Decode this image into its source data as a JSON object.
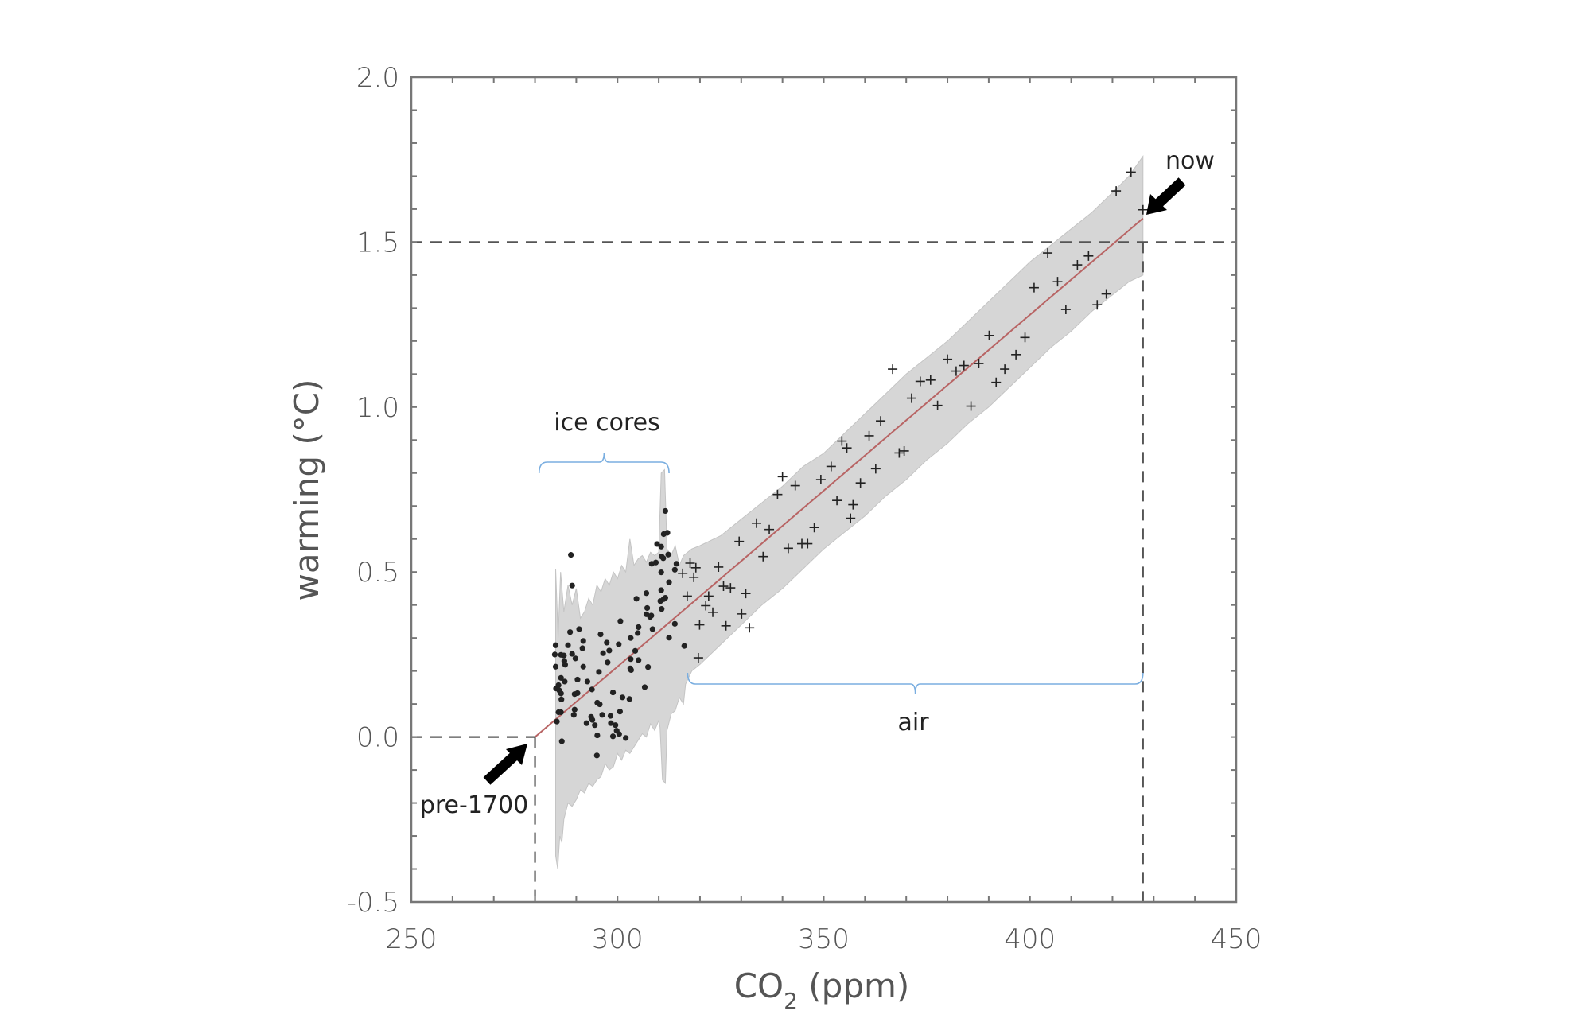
{
  "chart_data": {
    "type": "scatter",
    "title": "",
    "xlabel": {
      "main": "CO",
      "sub": "2",
      "rest": " (ppm)"
    },
    "ylabel": "warming (°C)",
    "xlim": [
      250,
      450
    ],
    "ylim": [
      -0.5,
      2.0
    ],
    "xticks": [
      250,
      300,
      350,
      400,
      450
    ],
    "xtick_labels": [
      "250",
      "300",
      "350",
      "400",
      "450"
    ],
    "yticks": [
      -0.5,
      0.0,
      0.5,
      1.0,
      1.5,
      2.0
    ],
    "ytick_labels": [
      "-0.5",
      "0.0",
      "0.5",
      "1.0",
      "1.5",
      "2.0"
    ],
    "grid": false,
    "colors": {
      "band": "#d6d6d6",
      "fit": "#b86464",
      "points": "#222222",
      "brace": "#7aaee0",
      "frame": "#777777",
      "guide": "#555555"
    },
    "fit_line": {
      "x": [
        280,
        427.4
      ],
      "y": [
        0.0,
        1.572
      ]
    },
    "uncertainty_band": {
      "upper": [
        [
          285,
          0.51
        ],
        [
          285.6,
          0.3
        ],
        [
          286.2,
          0.5
        ],
        [
          287,
          0.38
        ],
        [
          288,
          0.46
        ],
        [
          289,
          0.4
        ],
        [
          290,
          0.45
        ],
        [
          291,
          0.36
        ],
        [
          292,
          0.38
        ],
        [
          293,
          0.42
        ],
        [
          294,
          0.4
        ],
        [
          295,
          0.46
        ],
        [
          296,
          0.44
        ],
        [
          297,
          0.48
        ],
        [
          298,
          0.46
        ],
        [
          299,
          0.5
        ],
        [
          300,
          0.48
        ],
        [
          301,
          0.52
        ],
        [
          302,
          0.5
        ],
        [
          303,
          0.6
        ],
        [
          304,
          0.52
        ],
        [
          305,
          0.54
        ],
        [
          306,
          0.55
        ],
        [
          307,
          0.53
        ],
        [
          308,
          0.56
        ],
        [
          309,
          0.55
        ],
        [
          310,
          0.56
        ],
        [
          310.6,
          0.8
        ],
        [
          311.4,
          0.81
        ],
        [
          312,
          0.57
        ],
        [
          313,
          0.55
        ],
        [
          314,
          0.58
        ],
        [
          315,
          0.52
        ],
        [
          316,
          0.55
        ],
        [
          318,
          0.57
        ],
        [
          320,
          0.58
        ],
        [
          325,
          0.61
        ],
        [
          330,
          0.66
        ],
        [
          335,
          0.71
        ],
        [
          340,
          0.76
        ],
        [
          345,
          0.82
        ],
        [
          350,
          0.86
        ],
        [
          355,
          0.92
        ],
        [
          360,
          0.98
        ],
        [
          365,
          1.04
        ],
        [
          370,
          1.1
        ],
        [
          375,
          1.15
        ],
        [
          380,
          1.2
        ],
        [
          385,
          1.26
        ],
        [
          390,
          1.32
        ],
        [
          395,
          1.38
        ],
        [
          400,
          1.44
        ],
        [
          405,
          1.49
        ],
        [
          410,
          1.54
        ],
        [
          415,
          1.59
        ],
        [
          420,
          1.65
        ],
        [
          424,
          1.7
        ],
        [
          427.4,
          1.76
        ]
      ],
      "lower": [
        [
          427.4,
          1.4
        ],
        [
          424,
          1.38
        ],
        [
          420,
          1.34
        ],
        [
          415,
          1.29
        ],
        [
          410,
          1.23
        ],
        [
          405,
          1.18
        ],
        [
          400,
          1.12
        ],
        [
          395,
          1.06
        ],
        [
          390,
          1.0
        ],
        [
          385,
          0.95
        ],
        [
          380,
          0.89
        ],
        [
          375,
          0.84
        ],
        [
          370,
          0.78
        ],
        [
          365,
          0.73
        ],
        [
          360,
          0.67
        ],
        [
          355,
          0.62
        ],
        [
          350,
          0.57
        ],
        [
          345,
          0.51
        ],
        [
          340,
          0.45
        ],
        [
          335,
          0.4
        ],
        [
          330,
          0.34
        ],
        [
          325,
          0.28
        ],
        [
          320,
          0.22
        ],
        [
          318,
          0.2
        ],
        [
          316.5,
          0.16
        ],
        [
          316,
          0.1
        ],
        [
          315,
          0.12
        ],
        [
          314,
          0.08
        ],
        [
          313,
          0.07
        ],
        [
          312,
          0.02
        ],
        [
          311.6,
          -0.14
        ],
        [
          310.9,
          -0.13
        ],
        [
          310.3,
          0.03
        ],
        [
          310,
          0.05
        ],
        [
          309,
          0.02
        ],
        [
          308,
          0.04
        ],
        [
          307,
          0.0
        ],
        [
          306,
          0.01
        ],
        [
          305,
          -0.01
        ],
        [
          304,
          -0.03
        ],
        [
          303,
          -0.05
        ],
        [
          302,
          -0.04
        ],
        [
          301,
          -0.07
        ],
        [
          300,
          -0.05
        ],
        [
          299,
          -0.09
        ],
        [
          298,
          -0.1
        ],
        [
          297,
          -0.08
        ],
        [
          296,
          -0.12
        ],
        [
          295,
          -0.13
        ],
        [
          294,
          -0.15
        ],
        [
          293,
          -0.14
        ],
        [
          292,
          -0.17
        ],
        [
          291,
          -0.16
        ],
        [
          290,
          -0.19
        ],
        [
          289,
          -0.21
        ],
        [
          288,
          -0.2
        ],
        [
          287,
          -0.25
        ],
        [
          286.5,
          -0.32
        ],
        [
          286,
          -0.3
        ],
        [
          285.5,
          -0.4
        ],
        [
          285,
          -0.36
        ]
      ]
    },
    "series": [
      {
        "name": "ice cores",
        "marker": "dot",
        "x": [
          311.6,
          312.1,
          311.2,
          309.6,
          310.6,
          310.7,
          311.1,
          312.3,
          309.3,
          308.3,
          314.3,
          313.9,
          310.6,
          312.5,
          288.7,
          289.0,
          310.6,
          307.0,
          304.6,
          311.6,
          311.2,
          310.4,
          310.7,
          307.2,
          307.0,
          308.2,
          307.9,
          300.7,
          313.9,
          308.5,
          305.1,
          290.7,
          288.5,
          304.9,
          312.5,
          295.9,
          303.2,
          291.7,
          297.4,
          285.0,
          288.0,
          300.3,
          291.5,
          316.2,
          298.0,
          296.5,
          289.0,
          284.8,
          286.3,
          287.0,
          289.8,
          304.3,
          303.2,
          305.1,
          287.1,
          287.3,
          285.0,
          291.7,
          297.6,
          307.4,
          303.1,
          303.3,
          295.5,
          286.3,
          290.3,
          287.2,
          292.7,
          285.7,
          285.1,
          285.9,
          286.3,
          306.6,
          293.8,
          298.9,
          290.3,
          289.6,
          286.4,
          301.2,
          302.9,
          295.1,
          295.7,
          285.7,
          286.3,
          289.6,
          300.6,
          289.4,
          296.3,
          298.3,
          293.6,
          285.3,
          293.9,
          292.5,
          294.5,
          298.4,
          299.5,
          299.8,
          300.4,
          295.1,
          298.9,
          302.0,
          286.5,
          295.0
        ],
        "y": [
          0.685,
          0.619,
          0.615,
          0.585,
          0.577,
          0.547,
          0.542,
          0.553,
          0.529,
          0.525,
          0.525,
          0.507,
          0.499,
          0.469,
          0.552,
          0.459,
          0.445,
          0.436,
          0.419,
          0.422,
          0.418,
          0.412,
          0.388,
          0.391,
          0.372,
          0.368,
          0.364,
          0.351,
          0.343,
          0.327,
          0.333,
          0.327,
          0.318,
          0.315,
          0.301,
          0.311,
          0.3,
          0.291,
          0.286,
          0.278,
          0.278,
          0.281,
          0.269,
          0.276,
          0.262,
          0.254,
          0.252,
          0.25,
          0.249,
          0.247,
          0.238,
          0.261,
          0.236,
          0.233,
          0.23,
          0.219,
          0.213,
          0.213,
          0.226,
          0.212,
          0.208,
          0.203,
          0.197,
          0.179,
          0.174,
          0.168,
          0.168,
          0.157,
          0.147,
          0.141,
          0.132,
          0.151,
          0.144,
          0.135,
          0.133,
          0.13,
          0.114,
          0.12,
          0.115,
          0.104,
          0.099,
          0.075,
          0.075,
          0.083,
          0.077,
          0.067,
          0.067,
          0.064,
          0.061,
          0.047,
          0.052,
          0.042,
          0.036,
          0.042,
          0.036,
          0.019,
          0.009,
          0.005,
          0.002,
          -0.003,
          -0.013,
          -0.056
        ]
      },
      {
        "name": "air",
        "marker": "plus",
        "x": [
          424.5,
          420.9,
          427.4,
          404.3,
          414.2,
          411.5,
          406.7,
          401.0,
          418.5,
          416.3,
          408.7,
          390.1,
          398.8,
          396.6,
          380.0,
          387.6,
          384.0,
          382.1,
          393.9,
          366.7,
          373.4,
          375.9,
          391.8,
          371.3,
          377.6,
          385.7,
          363.8,
          361.0,
          354.4,
          355.6,
          368.3,
          369.5,
          351.8,
          362.6,
          349.3,
          340.0,
          343.1,
          338.8,
          358.9,
          353.2,
          357.1,
          356.5,
          333.7,
          336.8,
          347.7,
          329.5,
          344.7,
          346.1,
          341.4,
          335.3,
          324.5,
          317.6,
          319.0,
          315.8,
          318.5,
          325.7,
          327.4,
          331.1,
          316.9,
          322.1,
          321.4,
          323.1,
          330.1,
          319.9,
          326.3,
          332.0,
          319.6
        ],
        "y": [
          1.712,
          1.655,
          1.598,
          1.467,
          1.458,
          1.431,
          1.38,
          1.362,
          1.343,
          1.31,
          1.296,
          1.217,
          1.211,
          1.159,
          1.145,
          1.132,
          1.126,
          1.109,
          1.115,
          1.115,
          1.078,
          1.082,
          1.075,
          1.027,
          1.005,
          1.003,
          0.958,
          0.913,
          0.897,
          0.876,
          0.861,
          0.867,
          0.82,
          0.813,
          0.78,
          0.789,
          0.762,
          0.735,
          0.77,
          0.717,
          0.704,
          0.663,
          0.648,
          0.629,
          0.635,
          0.593,
          0.586,
          0.586,
          0.572,
          0.547,
          0.515,
          0.527,
          0.513,
          0.496,
          0.484,
          0.457,
          0.452,
          0.435,
          0.427,
          0.427,
          0.398,
          0.378,
          0.373,
          0.34,
          0.337,
          0.331,
          0.24
        ]
      }
    ],
    "reference_lines": {
      "pre_industrial": {
        "x": 280,
        "y": 0.0
      },
      "now": {
        "x": 427.4,
        "y": 1.5
      }
    },
    "annotations": {
      "ice_cores": "ice cores",
      "air": "air",
      "pre_1700": "pre-1700",
      "now": "now"
    },
    "brace_ranges": {
      "ice_cores": [
        281,
        312.5
      ],
      "air": [
        317,
        427.4
      ]
    }
  }
}
